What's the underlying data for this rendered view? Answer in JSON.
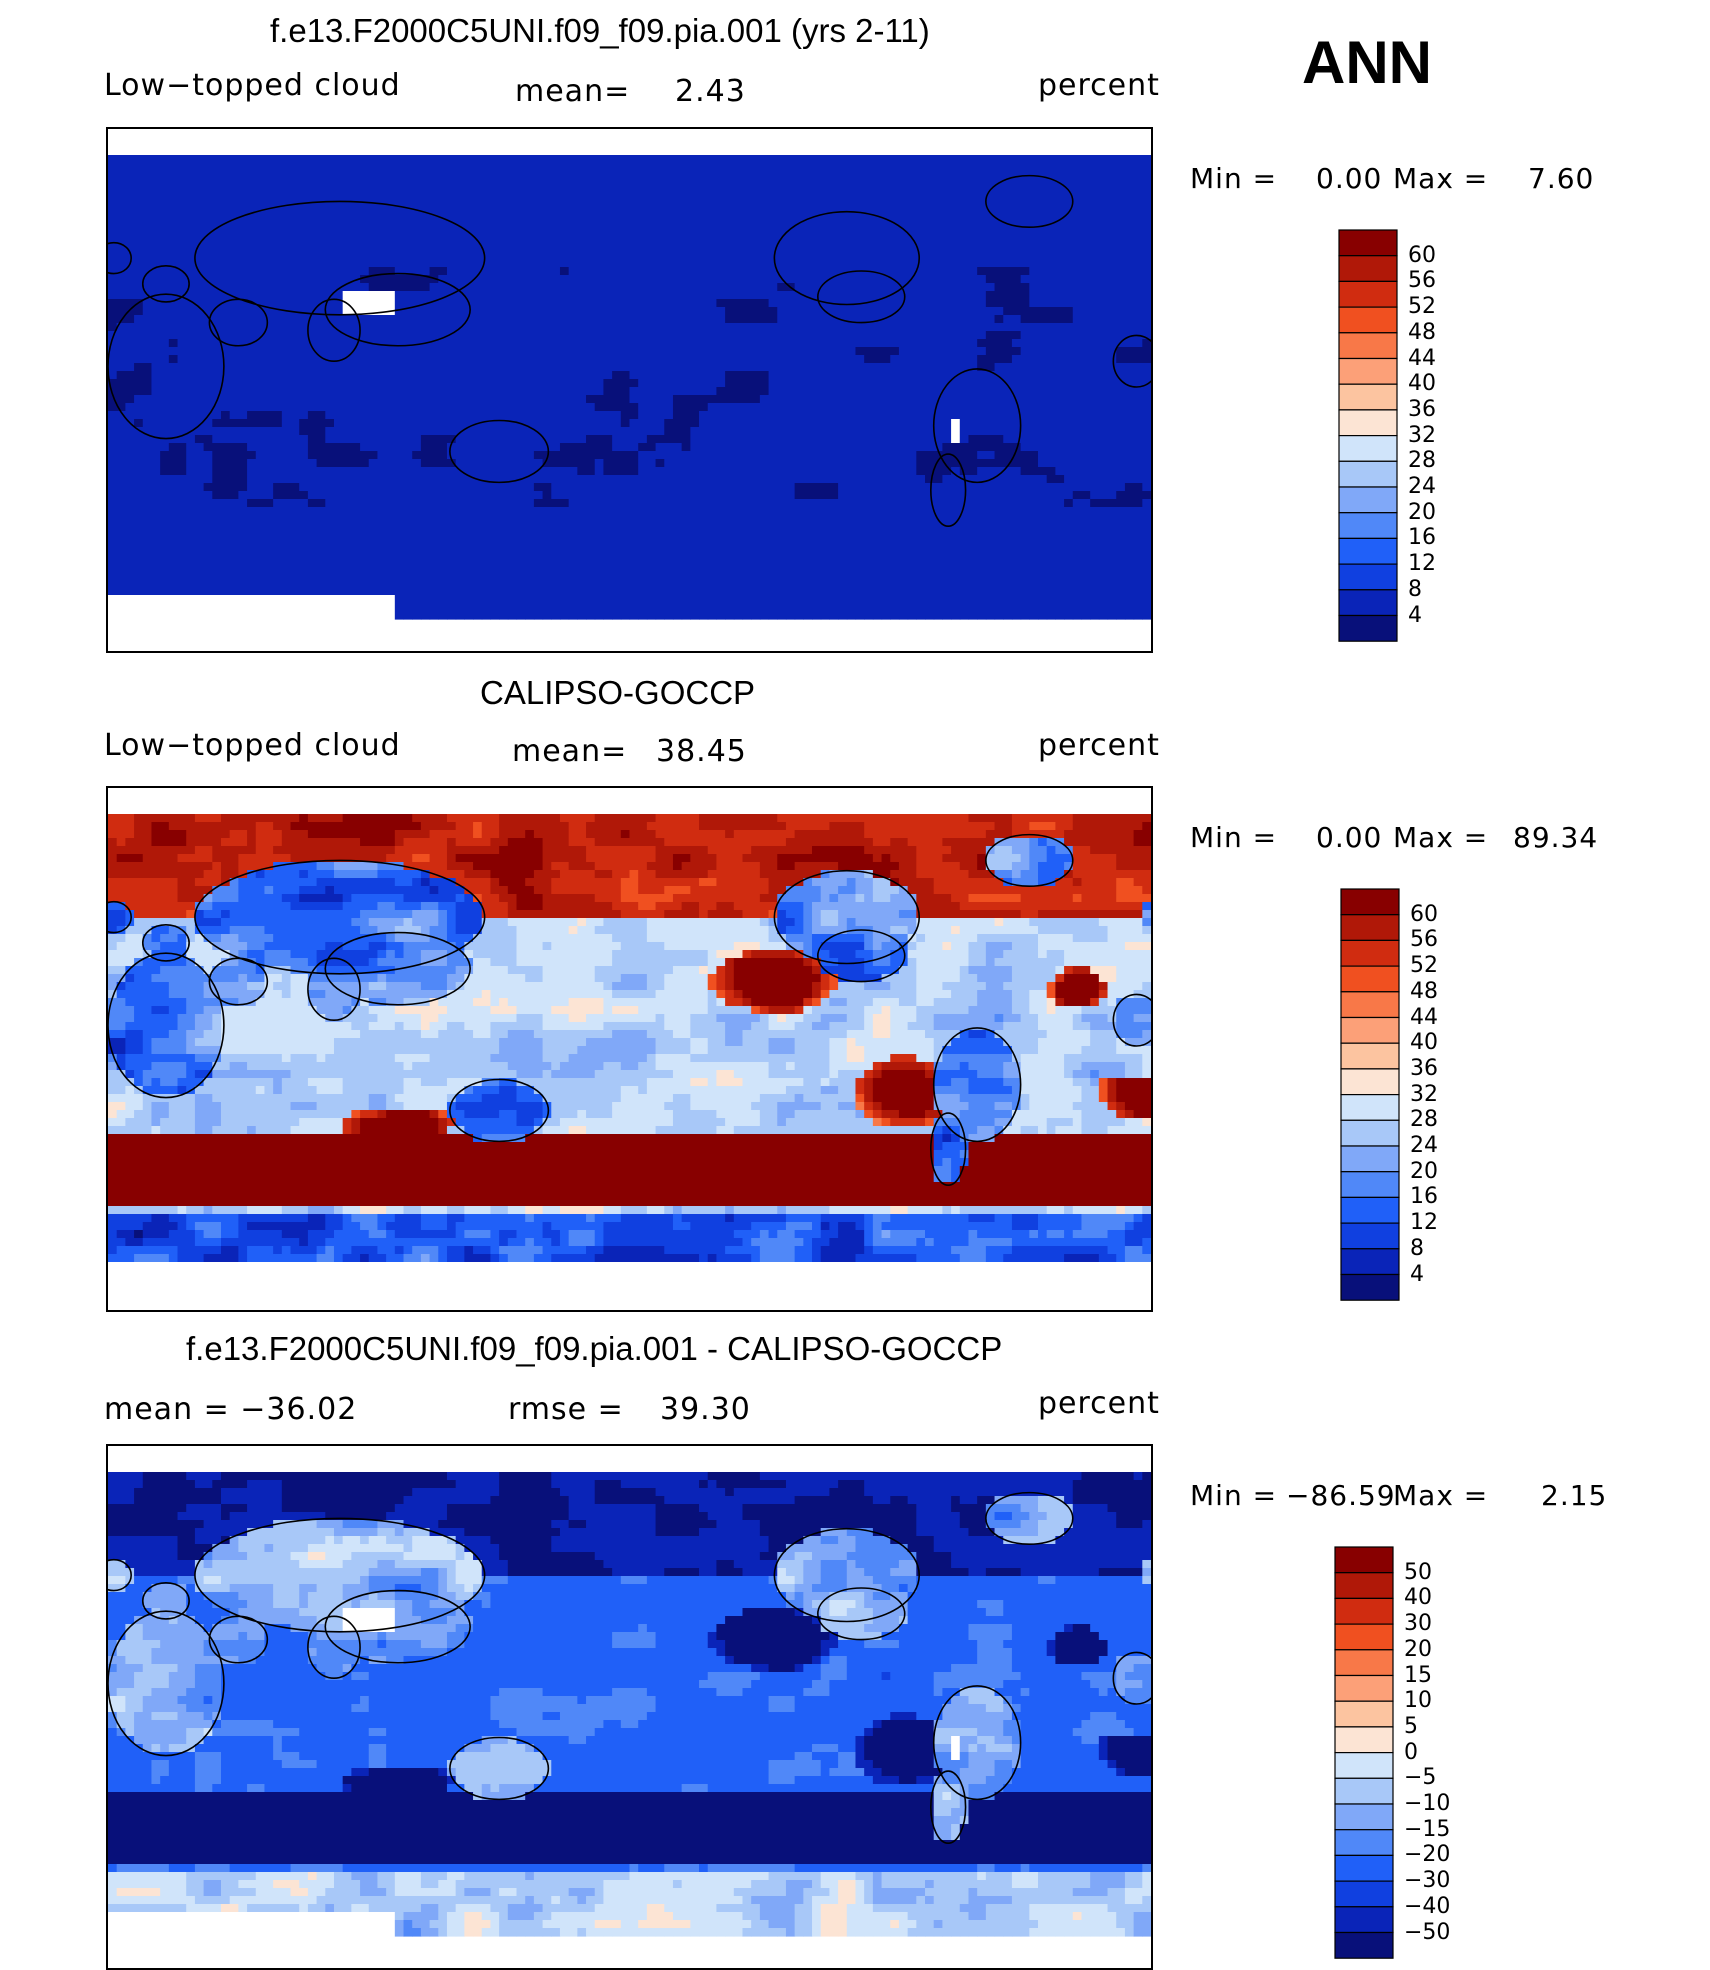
{
  "season": "ANN",
  "colors": {
    "seq": [
      "#08107a",
      "#0a24b8",
      "#1040e0",
      "#2060f8",
      "#5088f8",
      "#80a8f8",
      "#a8c8f8",
      "#d0e4fa",
      "#fce4d4",
      "#fcc4a0",
      "#fca078",
      "#f87848",
      "#f05020",
      "#d02c10",
      "#b01808",
      "#880000"
    ],
    "land": "#000000",
    "missing": "#ffffff"
  },
  "panels": [
    {
      "title": "f.e13.F2000C5UNI.f09_f09.pia.001 (yrs 2-11)",
      "left": "Low−topped  cloud",
      "center_label": "mean=",
      "center_value": "2.43",
      "right": "percent",
      "min_label": "Min  =",
      "min_value": "0.00",
      "max_label": "Max  =",
      "max_value": "7.60",
      "levels": [
        "60",
        "56",
        "52",
        "48",
        "44",
        "40",
        "36",
        "32",
        "28",
        "24",
        "20",
        "16",
        "12",
        "8",
        "4"
      ],
      "field": "model"
    },
    {
      "title": "CALIPSO-GOCCP",
      "left": "Low−topped  cloud",
      "center_label": "mean=",
      "center_value": "38.45",
      "right": "percent",
      "min_label": "Min  =",
      "min_value": "0.00",
      "max_label": "Max  =",
      "max_value": "89.34",
      "levels": [
        "60",
        "56",
        "52",
        "48",
        "44",
        "40",
        "36",
        "32",
        "28",
        "24",
        "20",
        "16",
        "12",
        "8",
        "4"
      ],
      "field": "obs"
    },
    {
      "title": "f.e13.F2000C5UNI.f09_f09.pia.001 - CALIPSO-GOCCP",
      "left": "mean  =  −36.02",
      "center_label": "rmse  =",
      "center_value": "39.30",
      "right": "percent",
      "min_label": "Min  =",
      "min_value": "−86.59",
      "max_label": "Max  =",
      "max_value": "2.15",
      "levels": [
        "50",
        "40",
        "30",
        "20",
        "15",
        "10",
        "5",
        "0",
        "−5",
        "−10",
        "−15",
        "−20",
        "−30",
        "−40",
        "−50"
      ],
      "field": "diff"
    }
  ],
  "chart_data": [
    {
      "type": "heatmap",
      "title": "f.e13.F2000C5UNI.f09_f09.pia.001 (yrs 2-11)",
      "variable": "Low−topped  cloud",
      "units": "percent",
      "mean": 2.43,
      "min": 0.0,
      "max": 7.6,
      "colorbar_levels": [
        4,
        8,
        12,
        16,
        20,
        24,
        28,
        32,
        36,
        40,
        44,
        48,
        52,
        56,
        60
      ],
      "x": "longitude 0-360",
      "y": "latitude -90 to 90"
    },
    {
      "type": "heatmap",
      "title": "CALIPSO-GOCCP",
      "variable": "Low−topped  cloud",
      "units": "percent",
      "mean": 38.45,
      "min": 0.0,
      "max": 89.34,
      "colorbar_levels": [
        4,
        8,
        12,
        16,
        20,
        24,
        28,
        32,
        36,
        40,
        44,
        48,
        52,
        56,
        60
      ]
    },
    {
      "type": "heatmap",
      "title": "f.e13.F2000C5UNI.f09_f09.pia.001 - CALIPSO-GOCCP",
      "units": "percent",
      "mean": -36.02,
      "rmse": 39.3,
      "min": -86.59,
      "max": 2.15,
      "colorbar_levels": [
        -50,
        -40,
        -30,
        -20,
        -15,
        -10,
        -5,
        0,
        5,
        10,
        15,
        20,
        30,
        40,
        50
      ]
    }
  ]
}
